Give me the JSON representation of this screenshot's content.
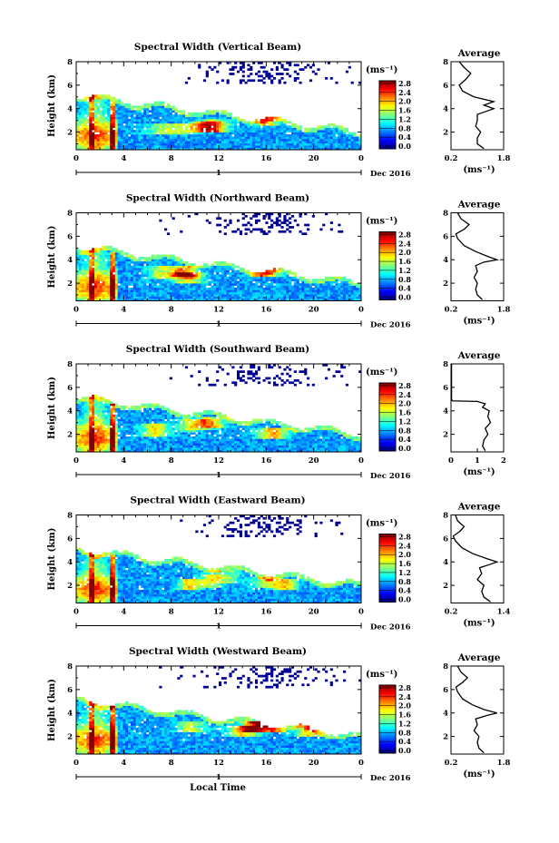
{
  "figure": {
    "xlabel": "Local Time",
    "date_label": "Dec 2016",
    "day_label": "1",
    "colorbar_unit": "(ms⁻¹)",
    "avg_xlabel": "(ms⁻¹)"
  },
  "colors": {
    "jet": [
      "#00007f",
      "#0000ff",
      "#007fff",
      "#00ffff",
      "#7fff7f",
      "#ffff00",
      "#ff7f00",
      "#ff0000",
      "#7f0000"
    ],
    "missing": "#ffffff",
    "line": "#000000"
  },
  "chart_data": [
    {
      "type": "heatmap",
      "title": "Spectral Width (Vertical Beam)",
      "ylabel": "Height (km)",
      "xlabel": "Local Time",
      "xlim": [
        0,
        24
      ],
      "xticks": [
        "0",
        "4",
        "8",
        "12",
        "16",
        "20",
        "0"
      ],
      "ylim": [
        0.5,
        8
      ],
      "yticks": [
        "2",
        "4",
        "6",
        "8"
      ],
      "colorbar": {
        "range": [
          0,
          2.8
        ],
        "ticks": [
          "2.8",
          "2.4",
          "2.0",
          "1.6",
          "1.2",
          "0.8",
          "0.4",
          "0.0"
        ]
      },
      "seed": 11,
      "profile": {
        "title": "Average",
        "xlabel": "(ms⁻¹)",
        "xlim": [
          0.2,
          1.8
        ],
        "xticks": [
          "0.2",
          "1.8"
        ],
        "ylim": [
          0.5,
          8
        ],
        "yticks": [
          "2",
          "4",
          "6",
          "8"
        ],
        "height_km": [
          0.6,
          1.0,
          1.5,
          2.0,
          2.5,
          3.0,
          3.5,
          3.8,
          4.0,
          4.3,
          4.6,
          5.0,
          5.5,
          6.0,
          6.5,
          7.0,
          7.5,
          8.0
        ],
        "width_ms": [
          1.2,
          1.0,
          1.0,
          1.1,
          0.95,
          1.0,
          1.0,
          1.3,
          1.5,
          1.2,
          1.5,
          0.9,
          0.55,
          0.45,
          0.65,
          0.8,
          0.6,
          0.45
        ]
      }
    },
    {
      "type": "heatmap",
      "title": "Spectral Width (Northward Beam)",
      "ylabel": "Height (km)",
      "xlabel": "Local Time",
      "xlim": [
        0,
        24
      ],
      "xticks": [
        "0",
        "4",
        "8",
        "12",
        "16",
        "20",
        "0"
      ],
      "ylim": [
        0.5,
        8
      ],
      "yticks": [
        "2",
        "4",
        "6",
        "8"
      ],
      "colorbar": {
        "range": [
          0,
          2.8
        ],
        "ticks": [
          "2.8",
          "2.4",
          "2.0",
          "1.6",
          "1.2",
          "0.8",
          "0.4",
          "0.0"
        ]
      },
      "seed": 23,
      "profile": {
        "title": "Average",
        "xlabel": "(ms⁻¹)",
        "xlim": [
          0.2,
          1.8
        ],
        "xticks": [
          "0.2",
          "1.8"
        ],
        "ylim": [
          0.5,
          8
        ],
        "yticks": [
          "2",
          "4",
          "6",
          "8"
        ],
        "height_km": [
          0.6,
          1.0,
          1.5,
          2.0,
          2.5,
          3.0,
          3.5,
          3.8,
          4.0,
          4.3,
          4.7,
          5.2,
          5.8,
          6.2,
          6.6,
          7.0,
          7.5,
          8.0
        ],
        "width_ms": [
          1.15,
          1.0,
          0.95,
          1.0,
          0.9,
          1.0,
          0.95,
          1.2,
          1.6,
          1.3,
          0.95,
          0.6,
          0.4,
          0.35,
          0.6,
          0.75,
          0.5,
          0.4
        ]
      }
    },
    {
      "type": "heatmap",
      "title": "Spectral Width (Southward Beam)",
      "ylabel": "Height (km)",
      "xlabel": "Local Time",
      "xlim": [
        0,
        24
      ],
      "xticks": [
        "0",
        "4",
        "8",
        "12",
        "16",
        "20",
        "0"
      ],
      "ylim": [
        0.5,
        8
      ],
      "yticks": [
        "2",
        "4",
        "6",
        "8"
      ],
      "colorbar": {
        "range": [
          0,
          2.8
        ],
        "ticks": [
          "2.8",
          "2.4",
          "2.0",
          "1.6",
          "1.2",
          "0.8",
          "0.4",
          "0.0"
        ]
      },
      "seed": 37,
      "profile": {
        "title": "Average",
        "xlabel": "(ms⁻¹)",
        "xlim": [
          0,
          2
        ],
        "xticks": [
          "0",
          "1",
          "2"
        ],
        "ylim": [
          0.5,
          8
        ],
        "yticks": [
          "2",
          "4",
          "6",
          "8"
        ],
        "height_km": [
          0.6,
          1.0,
          1.5,
          2.0,
          2.5,
          3.0,
          3.5,
          4.0,
          4.3,
          4.6,
          4.8,
          4.85,
          5.0,
          5.5,
          6.0,
          6.5,
          7.0,
          8.0
        ],
        "width_ms": [
          1.3,
          1.2,
          1.25,
          1.4,
          1.3,
          1.5,
          1.4,
          1.45,
          1.2,
          1.3,
          1.0,
          0.05,
          0.02,
          0.02,
          0.02,
          0.02,
          0.02,
          0.02
        ]
      }
    },
    {
      "type": "heatmap",
      "title": "Spectral Width (Eastward Beam)",
      "ylabel": "Height (km)",
      "xlabel": "Local Time",
      "xlim": [
        0,
        24
      ],
      "xticks": [
        "0",
        "4",
        "8",
        "12",
        "16",
        "20",
        "0"
      ],
      "ylim": [
        0.5,
        8
      ],
      "yticks": [
        "2",
        "4",
        "6",
        "8"
      ],
      "colorbar": {
        "range": [
          0,
          2.8
        ],
        "ticks": [
          "2.8",
          "2.4",
          "2.0",
          "1.6",
          "1.2",
          "0.8",
          "0.4",
          "0.0"
        ]
      },
      "seed": 53,
      "profile": {
        "title": "Average",
        "xlabel": "(ms⁻¹)",
        "xlim": [
          0.2,
          1.4
        ],
        "xticks": [
          "0.2",
          "1.4"
        ],
        "ylim": [
          0.5,
          8
        ],
        "yticks": [
          "2",
          "4",
          "6",
          "8"
        ],
        "height_km": [
          0.6,
          1.0,
          1.5,
          2.0,
          2.5,
          3.0,
          3.5,
          3.8,
          4.0,
          4.3,
          4.7,
          5.2,
          5.8,
          6.2,
          6.6,
          7.0,
          7.5,
          8.0
        ],
        "width_ms": [
          1.1,
          0.95,
          0.9,
          0.95,
          0.8,
          0.9,
          0.85,
          1.1,
          1.25,
          1.0,
          0.7,
          0.45,
          0.3,
          0.25,
          0.4,
          0.5,
          0.35,
          0.3
        ]
      }
    },
    {
      "type": "heatmap",
      "title": "Spectral Width (Westward Beam)",
      "ylabel": "Height (km)",
      "xlabel": "Local Time",
      "xlim": [
        0,
        24
      ],
      "xticks": [
        "0",
        "4",
        "8",
        "12",
        "16",
        "20",
        "0"
      ],
      "ylim": [
        0.5,
        8
      ],
      "yticks": [
        "2",
        "4",
        "6",
        "8"
      ],
      "colorbar": {
        "range": [
          0,
          2.8
        ],
        "ticks": [
          "2.8",
          "2.4",
          "2.0",
          "1.6",
          "1.2",
          "0.8",
          "0.4",
          "0.0"
        ]
      },
      "seed": 71,
      "profile": {
        "title": "Average",
        "xlabel": "(ms⁻¹)",
        "xlim": [
          0.2,
          1.8
        ],
        "xticks": [
          "0.2",
          "1.8"
        ],
        "ylim": [
          0.5,
          8
        ],
        "yticks": [
          "2",
          "4",
          "6",
          "8"
        ],
        "height_km": [
          0.6,
          1.0,
          1.5,
          2.0,
          2.5,
          3.0,
          3.5,
          3.8,
          4.0,
          4.3,
          4.7,
          5.2,
          5.8,
          6.2,
          6.6,
          7.0,
          7.5,
          8.0
        ],
        "width_ms": [
          1.2,
          1.05,
          1.0,
          1.05,
          0.9,
          1.0,
          0.95,
          1.3,
          1.6,
          1.2,
          0.85,
          0.55,
          0.4,
          0.35,
          0.55,
          0.7,
          0.5,
          0.4
        ]
      }
    }
  ]
}
